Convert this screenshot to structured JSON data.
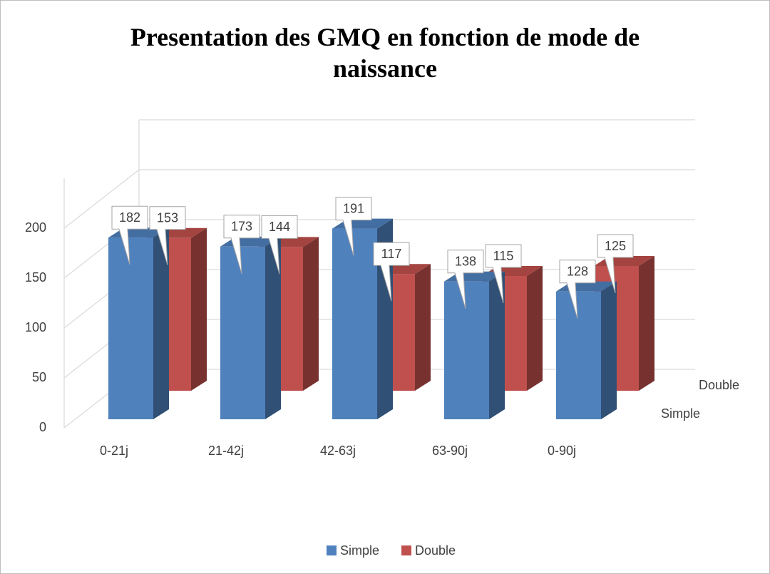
{
  "chart_data": {
    "type": "bar3d",
    "title": "Presentation des GMQ en fonction de mode de naissance",
    "categories": [
      "0-21j",
      "21-42j",
      "42-63j",
      "63-90j",
      "0-90j"
    ],
    "series": [
      {
        "name": "Simple",
        "color": "#4f81bd",
        "values": [
          182,
          173,
          191,
          138,
          128
        ]
      },
      {
        "name": "Double",
        "color": "#c0504d",
        "values": [
          153,
          144,
          117,
          115,
          125
        ]
      }
    ],
    "ylim": [
      0,
      250
    ],
    "yticks": [
      0,
      50,
      100,
      150,
      200
    ],
    "grid": true,
    "legend": "bottom"
  }
}
